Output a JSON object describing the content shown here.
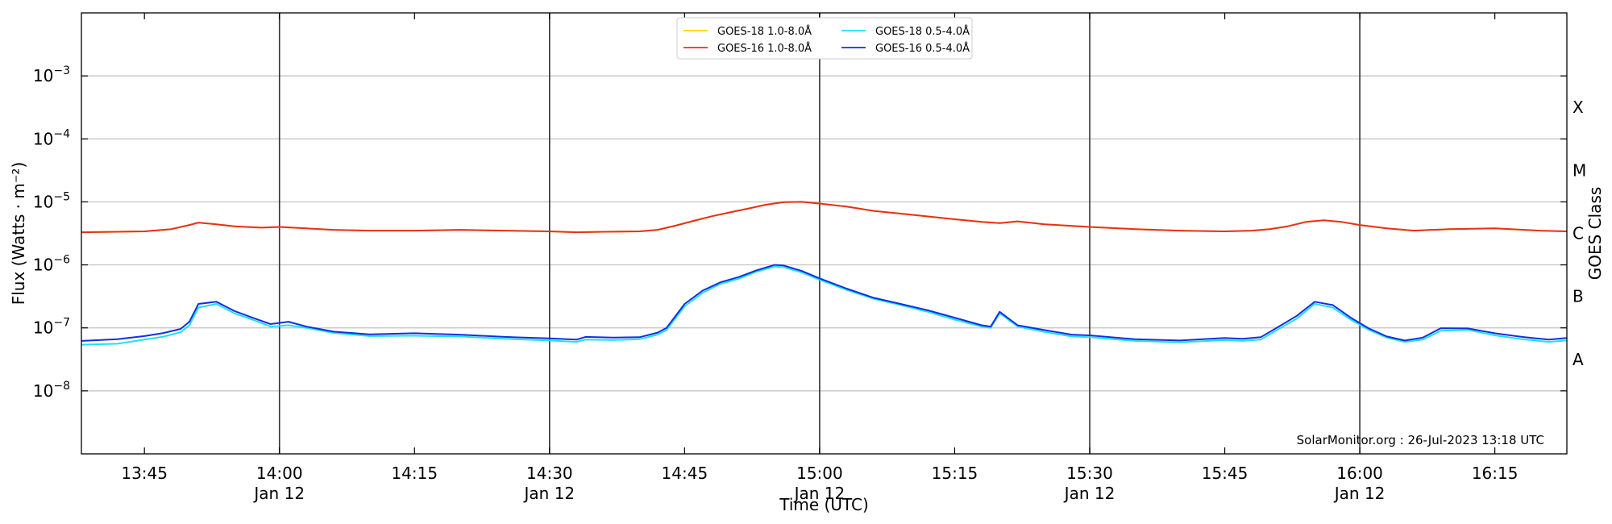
{
  "chart_data": {
    "type": "line",
    "xlabel": "Time (UTC)",
    "ylabel": "Flux (Watts · m⁻²)",
    "ylabel_right": "GOES Class",
    "yscale": "log",
    "ylim": [
      1e-09,
      0.01
    ],
    "xlim": [
      "13:38",
      "16:23"
    ],
    "date_label": "Jan 12",
    "x_ticks": [
      {
        "time": "13:45",
        "label": "13:45",
        "date": ""
      },
      {
        "time": "14:00",
        "label": "14:00",
        "date": "Jan 12"
      },
      {
        "time": "14:15",
        "label": "14:15",
        "date": ""
      },
      {
        "time": "14:30",
        "label": "14:30",
        "date": "Jan 12"
      },
      {
        "time": "14:45",
        "label": "14:45",
        "date": ""
      },
      {
        "time": "15:00",
        "label": "15:00",
        "date": "Jan 12"
      },
      {
        "time": "15:15",
        "label": "15:15",
        "date": ""
      },
      {
        "time": "15:30",
        "label": "15:30",
        "date": "Jan 12"
      },
      {
        "time": "15:45",
        "label": "15:45",
        "date": ""
      },
      {
        "time": "16:00",
        "label": "16:00",
        "date": "Jan 12"
      },
      {
        "time": "16:15",
        "label": "16:15",
        "date": ""
      }
    ],
    "vertical_lines": [
      "14:00",
      "14:30",
      "15:00",
      "15:30",
      "16:00"
    ],
    "y_ticks": [
      {
        "value": 1e-08,
        "base": "10",
        "exp": "−8"
      },
      {
        "value": 1e-07,
        "base": "10",
        "exp": "−7"
      },
      {
        "value": 1e-06,
        "base": "10",
        "exp": "−6"
      },
      {
        "value": 1e-05,
        "base": "10",
        "exp": "−5"
      },
      {
        "value": 0.0001,
        "base": "10",
        "exp": "−4"
      },
      {
        "value": 0.001,
        "base": "10",
        "exp": "−3"
      }
    ],
    "goes_classes": [
      {
        "label": "A",
        "value": 3.16e-08
      },
      {
        "label": "B",
        "value": 3.16e-07
      },
      {
        "label": "C",
        "value": 3.16e-06
      },
      {
        "label": "M",
        "value": 3.16e-05
      },
      {
        "label": "X",
        "value": 0.000316
      }
    ],
    "grid": true,
    "legend_position": "top-center",
    "legend": [
      {
        "name": "GOES-18 1.0-8.0Å",
        "color": "#ffd500"
      },
      {
        "name": "GOES-16 1.0-8.0Å",
        "color": "#e8301c"
      },
      {
        "name": "GOES-18 0.5-4.0Å",
        "color": "#22e0f0"
      },
      {
        "name": "GOES-16 0.5-4.0Å",
        "color": "#1030e0"
      }
    ],
    "series": [
      {
        "name": "GOES-18 1.0-8.0Å",
        "color": "#ffd500",
        "x": [
          "13:38",
          "13:45",
          "13:48",
          "13:50",
          "13:51",
          "13:53",
          "13:55",
          "13:58",
          "14:00",
          "14:03",
          "14:06",
          "14:10",
          "14:15",
          "14:20",
          "14:25",
          "14:30",
          "14:33",
          "14:36",
          "14:40",
          "14:42",
          "14:44",
          "14:46",
          "14:48",
          "14:50",
          "14:52",
          "14:54",
          "14:56",
          "14:58",
          "15:00",
          "15:03",
          "15:06",
          "15:10",
          "15:15",
          "15:18",
          "15:20",
          "15:22",
          "15:25",
          "15:30",
          "15:35",
          "15:40",
          "15:45",
          "15:48",
          "15:50",
          "15:52",
          "15:54",
          "15:56",
          "15:58",
          "16:00",
          "16:03",
          "16:06",
          "16:10",
          "16:15",
          "16:20",
          "16:23"
        ],
        "y": [
          3.3e-06,
          3.4e-06,
          3.7e-06,
          4.3e-06,
          4.7e-06,
          4.4e-06,
          4.1e-06,
          3.9e-06,
          4e-06,
          3.8e-06,
          3.6e-06,
          3.5e-06,
          3.5e-06,
          3.6e-06,
          3.5e-06,
          3.4e-06,
          3.3e-06,
          3.35e-06,
          3.4e-06,
          3.6e-06,
          4.2e-06,
          5e-06,
          5.9e-06,
          6.8e-06,
          7.8e-06,
          9e-06,
          9.9e-06,
          1e-05,
          9.4e-06,
          8.4e-06,
          7.2e-06,
          6.3e-06,
          5.3e-06,
          4.8e-06,
          4.6e-06,
          4.9e-06,
          4.4e-06,
          4e-06,
          3.7e-06,
          3.5e-06,
          3.4e-06,
          3.5e-06,
          3.7e-06,
          4.1e-06,
          4.8e-06,
          5.1e-06,
          4.8e-06,
          4.3e-06,
          3.8e-06,
          3.5e-06,
          3.7e-06,
          3.8e-06,
          3.5e-06,
          3.4e-06
        ]
      },
      {
        "name": "GOES-16 1.0-8.0Å",
        "color": "#e8301c",
        "x": [
          "13:38",
          "13:45",
          "13:48",
          "13:50",
          "13:51",
          "13:53",
          "13:55",
          "13:58",
          "14:00",
          "14:03",
          "14:06",
          "14:10",
          "14:15",
          "14:20",
          "14:25",
          "14:30",
          "14:33",
          "14:36",
          "14:40",
          "14:42",
          "14:44",
          "14:46",
          "14:48",
          "14:50",
          "14:52",
          "14:54",
          "14:56",
          "14:58",
          "15:00",
          "15:03",
          "15:06",
          "15:10",
          "15:15",
          "15:18",
          "15:20",
          "15:22",
          "15:25",
          "15:30",
          "15:35",
          "15:40",
          "15:45",
          "15:48",
          "15:50",
          "15:52",
          "15:54",
          "15:56",
          "15:58",
          "16:00",
          "16:03",
          "16:06",
          "16:10",
          "16:15",
          "16:20",
          "16:23"
        ],
        "y": [
          3.3e-06,
          3.4e-06,
          3.7e-06,
          4.3e-06,
          4.7e-06,
          4.4e-06,
          4.1e-06,
          3.9e-06,
          4e-06,
          3.8e-06,
          3.6e-06,
          3.5e-06,
          3.5e-06,
          3.6e-06,
          3.5e-06,
          3.4e-06,
          3.3e-06,
          3.35e-06,
          3.4e-06,
          3.6e-06,
          4.2e-06,
          5e-06,
          5.9e-06,
          6.8e-06,
          7.8e-06,
          9e-06,
          9.9e-06,
          1e-05,
          9.4e-06,
          8.4e-06,
          7.2e-06,
          6.3e-06,
          5.3e-06,
          4.8e-06,
          4.6e-06,
          4.9e-06,
          4.4e-06,
          4e-06,
          3.7e-06,
          3.5e-06,
          3.4e-06,
          3.5e-06,
          3.7e-06,
          4.1e-06,
          4.8e-06,
          5.1e-06,
          4.8e-06,
          4.3e-06,
          3.8e-06,
          3.5e-06,
          3.7e-06,
          3.8e-06,
          3.5e-06,
          3.4e-06
        ]
      },
      {
        "name": "GOES-18 0.5-4.0Å",
        "color": "#22e0f0",
        "x": [
          "13:38",
          "13:42",
          "13:45",
          "13:47",
          "13:49",
          "13:50",
          "13:51",
          "13:53",
          "13:55",
          "13:57",
          "13:59",
          "14:01",
          "14:03",
          "14:06",
          "14:10",
          "14:15",
          "14:20",
          "14:25",
          "14:30",
          "14:33",
          "14:34",
          "14:37",
          "14:40",
          "14:42",
          "14:43",
          "14:45",
          "14:47",
          "14:49",
          "14:51",
          "14:53",
          "14:55",
          "14:56",
          "14:58",
          "15:00",
          "15:03",
          "15:06",
          "15:09",
          "15:12",
          "15:15",
          "15:18",
          "15:19",
          "15:20",
          "15:22",
          "15:25",
          "15:28",
          "15:30",
          "15:35",
          "15:40",
          "15:45",
          "15:47",
          "15:49",
          "15:51",
          "15:53",
          "15:55",
          "15:57",
          "15:59",
          "16:01",
          "16:03",
          "16:05",
          "16:07",
          "16:09",
          "16:12",
          "16:15",
          "16:18",
          "16:21",
          "16:23"
        ],
        "y": [
          5.4e-08,
          5.6e-08,
          6.5e-08,
          7.2e-08,
          8.5e-08,
          1.1e-07,
          2.1e-07,
          2.4e-07,
          1.7e-07,
          1.35e-07,
          1.05e-07,
          1.1e-07,
          1e-07,
          8.3e-08,
          7.4e-08,
          7.5e-08,
          7.3e-08,
          6.7e-08,
          6.3e-08,
          6e-08,
          6.5e-08,
          6.4e-08,
          6.6e-08,
          7.8e-08,
          9.2e-08,
          2.2e-07,
          3.6e-07,
          5e-07,
          6e-07,
          7.8e-07,
          9.4e-07,
          9.2e-07,
          7.6e-07,
          5.8e-07,
          4e-07,
          2.9e-07,
          2.3e-07,
          1.8e-07,
          1.35e-07,
          1.05e-07,
          1e-07,
          1.7e-07,
          1.05e-07,
          8.6e-08,
          7.3e-08,
          7.1e-08,
          6.2e-08,
          5.9e-08,
          6.4e-08,
          6.2e-08,
          6.5e-08,
          9.6e-08,
          1.4e-07,
          2.4e-07,
          2.1e-07,
          1.35e-07,
          9.3e-08,
          7e-08,
          6e-08,
          6.5e-08,
          9e-08,
          9.3e-08,
          7.6e-08,
          6.6e-08,
          6e-08,
          6.3e-08
        ]
      },
      {
        "name": "GOES-16 0.5-4.0Å",
        "color": "#1030e0",
        "x": [
          "13:38",
          "13:42",
          "13:45",
          "13:47",
          "13:49",
          "13:50",
          "13:51",
          "13:53",
          "13:55",
          "13:57",
          "13:59",
          "14:01",
          "14:03",
          "14:06",
          "14:10",
          "14:15",
          "14:20",
          "14:25",
          "14:30",
          "14:33",
          "14:34",
          "14:37",
          "14:40",
          "14:42",
          "14:43",
          "14:45",
          "14:47",
          "14:49",
          "14:51",
          "14:53",
          "14:55",
          "14:56",
          "14:58",
          "15:00",
          "15:03",
          "15:06",
          "15:09",
          "15:12",
          "15:15",
          "15:18",
          "15:19",
          "15:20",
          "15:22",
          "15:25",
          "15:28",
          "15:30",
          "15:35",
          "15:40",
          "15:45",
          "15:47",
          "15:49",
          "15:51",
          "15:53",
          "15:55",
          "15:57",
          "15:59",
          "16:01",
          "16:03",
          "16:05",
          "16:07",
          "16:09",
          "16:12",
          "16:15",
          "16:18",
          "16:21",
          "16:23"
        ],
        "y": [
          6.2e-08,
          6.6e-08,
          7.4e-08,
          8.2e-08,
          9.6e-08,
          1.25e-07,
          2.4e-07,
          2.6e-07,
          1.85e-07,
          1.45e-07,
          1.15e-07,
          1.25e-07,
          1.05e-07,
          8.7e-08,
          7.9e-08,
          8.2e-08,
          7.8e-08,
          7.2e-08,
          6.8e-08,
          6.5e-08,
          7.2e-08,
          7e-08,
          7.1e-08,
          8.4e-08,
          1e-07,
          2.4e-07,
          3.9e-07,
          5.3e-07,
          6.4e-07,
          8.2e-07,
          1e-06,
          9.8e-07,
          8e-07,
          6.1e-07,
          4.2e-07,
          3e-07,
          2.4e-07,
          1.9e-07,
          1.45e-07,
          1.1e-07,
          1.05e-07,
          1.8e-07,
          1.1e-07,
          9.2e-08,
          7.8e-08,
          7.6e-08,
          6.6e-08,
          6.3e-08,
          6.9e-08,
          6.7e-08,
          7.1e-08,
          1.05e-07,
          1.55e-07,
          2.6e-07,
          2.3e-07,
          1.45e-07,
          9.8e-08,
          7.3e-08,
          6.3e-08,
          7e-08,
          9.9e-08,
          9.8e-08,
          8.2e-08,
          7.2e-08,
          6.5e-08,
          6.9e-08
        ]
      }
    ],
    "credit": "SolarMonitor.org : 26-Jul-2023 13:18 UTC"
  }
}
